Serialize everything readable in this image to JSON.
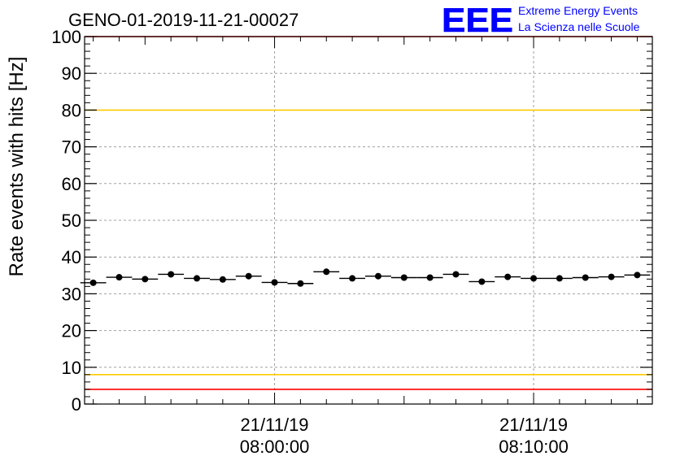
{
  "chart_data": {
    "type": "scatter",
    "title": "GENO-01-2019-11-21-00027",
    "ylabel": "Rate events with hits [Hz]",
    "xlabel": "",
    "ylim": [
      0,
      100
    ],
    "yticks": [
      0,
      10,
      20,
      30,
      40,
      50,
      60,
      70,
      80,
      90,
      100
    ],
    "xlim": [
      "2019-11-21 07:52:40",
      "2019-11-21 08:14:35"
    ],
    "x_tick_labels": [
      {
        "date": "21/11/19",
        "time": "08:00:00",
        "x": "2019-11-21 08:00:00"
      },
      {
        "date": "21/11/19",
        "time": "08:10:00",
        "x": "2019-11-21 08:10:00"
      }
    ],
    "grid": true,
    "threshold_lines": [
      {
        "y": 100,
        "color": "#ff0000"
      },
      {
        "y": 80,
        "color": "#ffcc00"
      },
      {
        "y": 8,
        "color": "#ffcc00"
      },
      {
        "y": 4,
        "color": "#ff0000"
      }
    ],
    "series": [
      {
        "color": "#000000",
        "points": [
          {
            "x": "2019-11-21 07:53:00",
            "y": 33.0
          },
          {
            "x": "2019-11-21 07:54:00",
            "y": 34.5
          },
          {
            "x": "2019-11-21 07:55:00",
            "y": 34.0
          },
          {
            "x": "2019-11-21 07:56:00",
            "y": 35.3
          },
          {
            "x": "2019-11-21 07:57:00",
            "y": 34.2
          },
          {
            "x": "2019-11-21 07:58:00",
            "y": 33.9
          },
          {
            "x": "2019-11-21 07:59:00",
            "y": 34.8
          },
          {
            "x": "2019-11-21 08:00:00",
            "y": 33.1
          },
          {
            "x": "2019-11-21 08:01:00",
            "y": 32.8
          },
          {
            "x": "2019-11-21 08:02:00",
            "y": 36.0
          },
          {
            "x": "2019-11-21 08:03:00",
            "y": 34.2
          },
          {
            "x": "2019-11-21 08:04:00",
            "y": 34.8
          },
          {
            "x": "2019-11-21 08:05:00",
            "y": 34.4
          },
          {
            "x": "2019-11-21 08:06:00",
            "y": 34.4
          },
          {
            "x": "2019-11-21 08:07:00",
            "y": 35.3
          },
          {
            "x": "2019-11-21 08:08:00",
            "y": 33.3
          },
          {
            "x": "2019-11-21 08:09:00",
            "y": 34.6
          },
          {
            "x": "2019-11-21 08:10:00",
            "y": 34.2
          },
          {
            "x": "2019-11-21 08:11:00",
            "y": 34.2
          },
          {
            "x": "2019-11-21 08:12:00",
            "y": 34.4
          },
          {
            "x": "2019-11-21 08:13:00",
            "y": 34.6
          },
          {
            "x": "2019-11-21 08:14:00",
            "y": 35.1
          }
        ]
      }
    ]
  },
  "logo": {
    "mark": "EEE",
    "line1": "Extreme Energy Events",
    "line2": "La Scienza nelle Scuole",
    "color": "#0000ff"
  }
}
